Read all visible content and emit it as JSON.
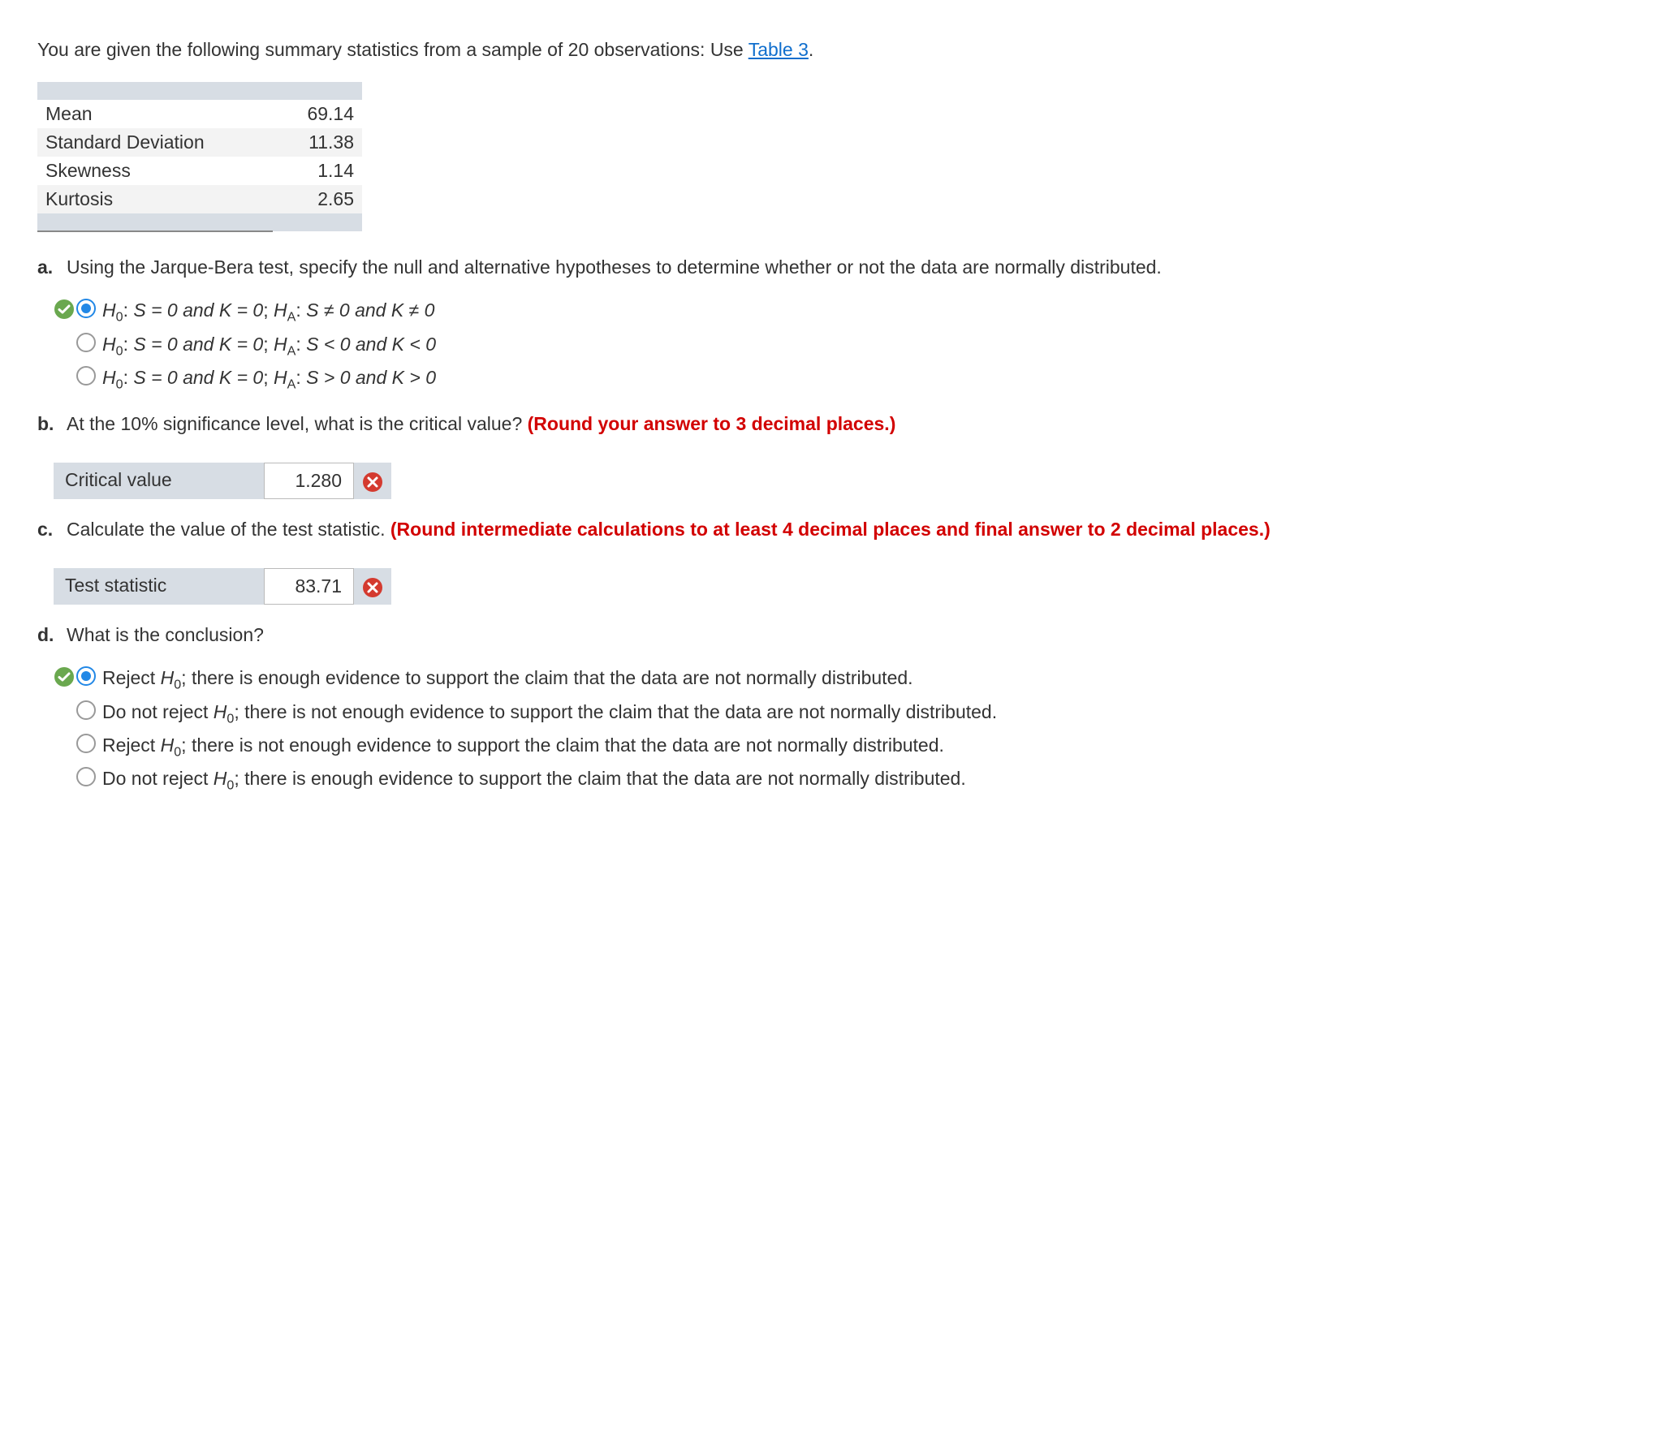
{
  "intro": {
    "prefix": "You are given the following summary statistics from a sample of 20 observations: Use ",
    "link_text": "Table 3",
    "suffix": "."
  },
  "stats": {
    "rows": [
      {
        "label": "Mean",
        "value": "69.14"
      },
      {
        "label": "Standard Deviation",
        "value": "11.38"
      },
      {
        "label": "Skewness",
        "value": "1.14"
      },
      {
        "label": "Kurtosis",
        "value": "2.65"
      }
    ]
  },
  "partA": {
    "marker": "a.",
    "prompt": "Using the Jarque-Bera test, specify the null and alternative hypotheses to determine whether or not the data are normally distributed.",
    "options": [
      {
        "status": "correct",
        "selected": true,
        "h0": "S = 0 and K = 0",
        "ha": "S ≠ 0 and K ≠ 0"
      },
      {
        "status": "none",
        "selected": false,
        "h0": "S = 0 and K = 0",
        "ha": "S < 0 and K < 0"
      },
      {
        "status": "none",
        "selected": false,
        "h0": "S = 0 and K = 0",
        "ha": "S > 0 and K > 0"
      }
    ]
  },
  "partB": {
    "marker": "b.",
    "prompt_plain": "At the 10% significance level, what is the critical value? ",
    "prompt_red": "(Round your answer to 3 decimal places.)",
    "label": "Critical value",
    "value": "1.280",
    "status": "incorrect"
  },
  "partC": {
    "marker": "c.",
    "prompt_plain": "Calculate the value of the test statistic. ",
    "prompt_red": "(Round intermediate calculations to at least 4 decimal places and final answer to 2 decimal places.)",
    "label": "Test statistic",
    "value": "83.71",
    "status": "incorrect"
  },
  "partD": {
    "marker": "d.",
    "prompt": "What is the conclusion?",
    "options": [
      {
        "status": "correct",
        "selected": true,
        "lead": "Reject ",
        "tail": "; there is enough evidence to support the claim that the data are not normally distributed."
      },
      {
        "status": "none",
        "selected": false,
        "lead": "Do not reject ",
        "tail": "; there is not enough evidence to support the claim that the data are not normally distributed."
      },
      {
        "status": "none",
        "selected": false,
        "lead": "Reject ",
        "tail": "; there is not enough evidence to support the claim that the data are not normally distributed."
      },
      {
        "status": "none",
        "selected": false,
        "lead": "Do not reject ",
        "tail": "; there is enough evidence to support the claim that the data are not normally distributed."
      }
    ]
  }
}
